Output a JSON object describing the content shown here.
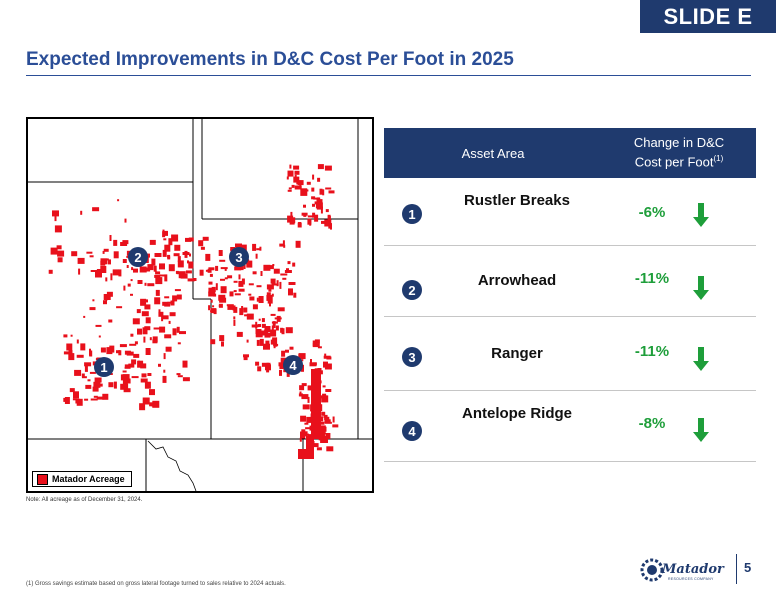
{
  "slide_tag": "SLIDE E",
  "title": "Expected Improvements in D&C Cost Per Foot in 2025",
  "map": {
    "legend_label": "Matador Acreage",
    "markers": [
      "1",
      "2",
      "3",
      "4"
    ],
    "acreage_color": "#e8101b"
  },
  "note": "Note: All acreage as of December 31, 2024.",
  "table": {
    "header_asset": "Asset Area",
    "header_change": "Change in D&C Cost per Foot",
    "header_change_sup": "(1)",
    "rows": [
      {
        "num": "1",
        "name": "Rustler Breaks",
        "change": "-6%"
      },
      {
        "num": "2",
        "name": "Arrowhead",
        "change": "-11%"
      },
      {
        "num": "3",
        "name": "Ranger",
        "change": "-11%"
      },
      {
        "num": "4",
        "name": "Antelope Ridge",
        "change": "-8%"
      }
    ],
    "change_color": "#1e9e3a",
    "arrow_icon": "down-arrow-icon"
  },
  "footnote": "(1)   Gross savings estimate based on gross lateral footage turned to sales relative to 2024 actuals.",
  "logo": {
    "name": "Matador",
    "subtitle": "RESOURCES COMPANY"
  },
  "page_number": "5",
  "colors": {
    "brand": "#1f3a6e",
    "title": "#2b4e97"
  }
}
